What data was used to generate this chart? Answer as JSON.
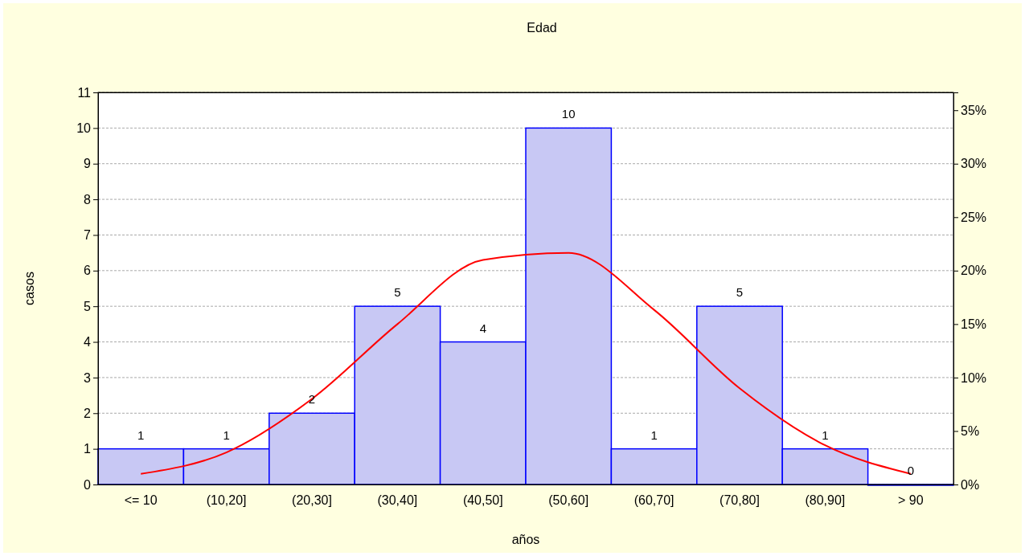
{
  "chart_data": {
    "type": "bar",
    "title": "Edad",
    "xlabel": "años",
    "ylabel": "casos",
    "categories": [
      "<= 10",
      "(10,20]",
      "(20,30]",
      "(30,40]",
      "(40,50]",
      "(50,60]",
      "(60,70]",
      "(70,80]",
      "(80,90]",
      "> 90"
    ],
    "series": [
      {
        "color": "#c8c8f4",
        "values": [
          1,
          1,
          2,
          5,
          4,
          10,
          1,
          5,
          1,
          0
        ],
        "value_labels": [
          "1",
          "1",
          "2",
          "5",
          "4",
          "10",
          "1",
          "5",
          "1",
          "0"
        ]
      },
      {
        "type": "line",
        "color": "#ff0000",
        "values": [
          0.3,
          0.9,
          2.4,
          4.5,
          6.3,
          6.5,
          4.9,
          2.7,
          1.1,
          0.3
        ]
      }
    ],
    "ylim": [
      0,
      11
    ],
    "yticks": [
      0,
      1,
      2,
      3,
      4,
      5,
      6,
      7,
      8,
      9,
      10,
      11
    ],
    "y2lim": [
      0,
      36.67
    ],
    "y2ticks": [
      {
        "value": 0,
        "label": "0%"
      },
      {
        "value": 5,
        "label": "5%"
      },
      {
        "value": 10,
        "label": "10%"
      },
      {
        "value": 15,
        "label": "15%"
      },
      {
        "value": 20,
        "label": "20%"
      },
      {
        "value": 25,
        "label": "25%"
      },
      {
        "value": 30,
        "label": "30%"
      },
      {
        "value": 35,
        "label": "35%"
      }
    ],
    "grid": "y",
    "marker": "none",
    "line_style": "solid"
  }
}
